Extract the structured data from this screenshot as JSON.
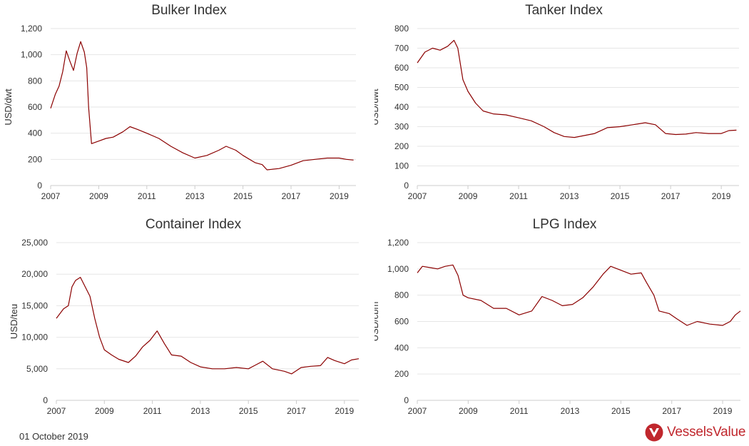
{
  "footer": {
    "date": "01 October 2019"
  },
  "brand": {
    "name": "VesselsValue",
    "color": "#c0272d"
  },
  "line_color": "#8b0000",
  "chart_data": [
    {
      "type": "line",
      "title": "Bulker Index",
      "ylabel": "USD/dwt",
      "xlabel": "",
      "xlim": [
        2007,
        2019.7
      ],
      "ylim": [
        0,
        1200
      ],
      "yticks": [
        0,
        200,
        400,
        600,
        800,
        1000,
        1200
      ],
      "ytick_labels": [
        "0",
        "200",
        "400",
        "600",
        "800",
        "1,000",
        "1,200"
      ],
      "xticks": [
        2007,
        2009,
        2011,
        2013,
        2015,
        2017,
        2019
      ],
      "grid": true,
      "x": [
        2007.0,
        2007.2,
        2007.35,
        2007.5,
        2007.65,
        2007.8,
        2007.95,
        2008.1,
        2008.25,
        2008.4,
        2008.5,
        2008.58,
        2008.7,
        2009.0,
        2009.3,
        2009.6,
        2010.0,
        2010.3,
        2010.6,
        2011.0,
        2011.5,
        2012.0,
        2012.5,
        2013.0,
        2013.5,
        2014.0,
        2014.3,
        2014.7,
        2015.0,
        2015.5,
        2015.8,
        2016.0,
        2016.5,
        2017.0,
        2017.5,
        2018.0,
        2018.5,
        2019.0,
        2019.3,
        2019.6
      ],
      "series": [
        {
          "values": [
            590,
            700,
            760,
            870,
            1030,
            950,
            880,
            1010,
            1100,
            1020,
            900,
            600,
            320,
            340,
            360,
            370,
            410,
            450,
            430,
            400,
            360,
            300,
            250,
            210,
            230,
            270,
            300,
            270,
            230,
            175,
            160,
            120,
            130,
            155,
            190,
            200,
            210,
            210,
            200,
            195
          ]
        }
      ]
    },
    {
      "type": "line",
      "title": "Tanker Index",
      "ylabel": "USD/dwt",
      "xlabel": "",
      "xlim": [
        2007,
        2019.7
      ],
      "ylim": [
        0,
        800
      ],
      "yticks": [
        0,
        100,
        200,
        300,
        400,
        500,
        600,
        700,
        800
      ],
      "ytick_labels": [
        "0",
        "100",
        "200",
        "300",
        "400",
        "500",
        "600",
        "700",
        "800"
      ],
      "xticks": [
        2007,
        2009,
        2011,
        2013,
        2015,
        2017,
        2019
      ],
      "grid": true,
      "x": [
        2007.0,
        2007.3,
        2007.6,
        2007.9,
        2008.2,
        2008.45,
        2008.6,
        2008.8,
        2009.0,
        2009.3,
        2009.6,
        2010.0,
        2010.5,
        2011.0,
        2011.5,
        2012.0,
        2012.4,
        2012.8,
        2013.2,
        2013.6,
        2014.0,
        2014.5,
        2015.0,
        2015.5,
        2016.0,
        2016.4,
        2016.8,
        2017.2,
        2017.6,
        2018.0,
        2018.5,
        2019.0,
        2019.3,
        2019.6
      ],
      "series": [
        {
          "values": [
            625,
            680,
            700,
            690,
            710,
            740,
            700,
            540,
            480,
            420,
            380,
            365,
            360,
            345,
            330,
            300,
            270,
            250,
            245,
            255,
            265,
            295,
            300,
            310,
            320,
            310,
            265,
            260,
            262,
            270,
            265,
            265,
            280,
            282
          ]
        }
      ]
    },
    {
      "type": "line",
      "title": "Container Index",
      "ylabel": "USD/teu",
      "xlabel": "",
      "xlim": [
        2007,
        2019.6
      ],
      "ylim": [
        0,
        25000
      ],
      "yticks": [
        0,
        5000,
        10000,
        15000,
        20000,
        25000
      ],
      "ytick_labels": [
        "0",
        "5,000",
        "10,000",
        "15,000",
        "20,000",
        "25,000"
      ],
      "xticks": [
        2007,
        2009,
        2011,
        2013,
        2015,
        2017,
        2019
      ],
      "grid": true,
      "x": [
        2007.0,
        2007.3,
        2007.5,
        2007.65,
        2007.8,
        2008.0,
        2008.2,
        2008.4,
        2008.6,
        2008.8,
        2009.0,
        2009.3,
        2009.6,
        2010.0,
        2010.3,
        2010.6,
        2010.9,
        2011.2,
        2011.5,
        2011.8,
        2012.2,
        2012.6,
        2013.0,
        2013.5,
        2014.0,
        2014.5,
        2015.0,
        2015.3,
        2015.6,
        2016.0,
        2016.5,
        2016.8,
        2017.2,
        2017.6,
        2018.0,
        2018.3,
        2018.6,
        2019.0,
        2019.3,
        2019.6
      ],
      "series": [
        {
          "values": [
            13000,
            14500,
            15000,
            18000,
            19000,
            19500,
            18000,
            16500,
            13000,
            10000,
            8000,
            7200,
            6500,
            6000,
            7000,
            8500,
            9500,
            11000,
            9000,
            7200,
            7000,
            6000,
            5300,
            5000,
            5000,
            5200,
            5000,
            5600,
            6200,
            5000,
            4600,
            4200,
            5200,
            5400,
            5500,
            6800,
            6300,
            5800,
            6400,
            6600
          ]
        }
      ]
    },
    {
      "type": "line",
      "title": "LPG Index",
      "ylabel": "USD/cbm",
      "xlabel": "",
      "xlim": [
        2007,
        2019.7
      ],
      "ylim": [
        0,
        1200
      ],
      "yticks": [
        0,
        200,
        400,
        600,
        800,
        1000,
        1200
      ],
      "ytick_labels": [
        "0",
        "200",
        "400",
        "600",
        "800",
        "1,000",
        "1,200"
      ],
      "xticks": [
        2007,
        2009,
        2011,
        2013,
        2015,
        2017,
        2019
      ],
      "grid": true,
      "x": [
        2007.0,
        2007.2,
        2007.5,
        2007.8,
        2008.1,
        2008.4,
        2008.6,
        2008.8,
        2009.0,
        2009.5,
        2010.0,
        2010.5,
        2011.0,
        2011.5,
        2011.9,
        2012.3,
        2012.7,
        2013.1,
        2013.5,
        2013.9,
        2014.3,
        2014.6,
        2015.0,
        2015.4,
        2015.8,
        2016.0,
        2016.3,
        2016.5,
        2016.9,
        2017.2,
        2017.6,
        2018.0,
        2018.5,
        2019.0,
        2019.3,
        2019.5,
        2019.7
      ],
      "series": [
        {
          "values": [
            970,
            1020,
            1010,
            1000,
            1020,
            1030,
            950,
            800,
            780,
            760,
            700,
            700,
            650,
            680,
            790,
            760,
            720,
            730,
            780,
            860,
            960,
            1020,
            990,
            960,
            970,
            900,
            800,
            680,
            660,
            620,
            570,
            600,
            580,
            570,
            600,
            650,
            680
          ]
        }
      ]
    }
  ]
}
